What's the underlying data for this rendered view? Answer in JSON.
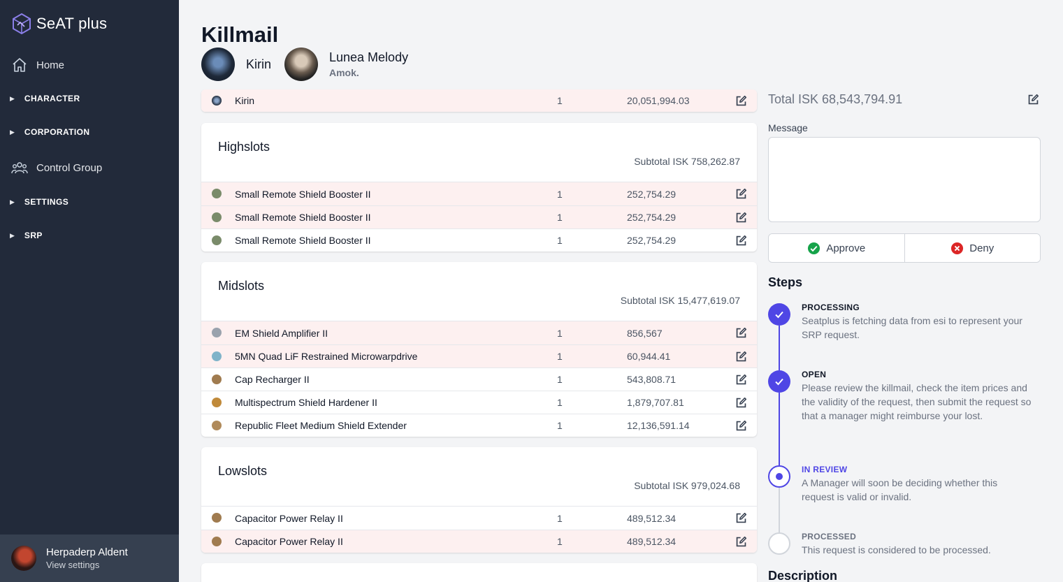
{
  "app": {
    "name": "SeAT plus"
  },
  "sidebar": {
    "home": "Home",
    "character": "CHARACTER",
    "corporation": "CORPORATION",
    "control_group": "Control Group",
    "settings": "SETTINGS",
    "srp": "SRP"
  },
  "user": {
    "name": "Herpaderp Aldent",
    "sub": "View settings"
  },
  "page": {
    "title": "Killmail"
  },
  "victim": {
    "ship": "Kirin",
    "pilot": "Lunea Melody",
    "corporation": "Amok."
  },
  "ship_row": {
    "name": "Kirin",
    "qty": "1",
    "value": "20,051,994.03"
  },
  "highslots": {
    "title": "Highslots",
    "subtotal": "Subtotal ISK 758,262.87",
    "items": [
      {
        "name": "Small Remote Shield Booster II",
        "qty": "1",
        "value": "252,754.29"
      },
      {
        "name": "Small Remote Shield Booster II",
        "qty": "1",
        "value": "252,754.29"
      },
      {
        "name": "Small Remote Shield Booster II",
        "qty": "1",
        "value": "252,754.29"
      }
    ]
  },
  "midslots": {
    "title": "Midslots",
    "subtotal": "Subtotal ISK 15,477,619.07",
    "items": [
      {
        "name": "EM Shield Amplifier II",
        "qty": "1",
        "value": "856,567"
      },
      {
        "name": "5MN Quad LiF Restrained Microwarpdrive",
        "qty": "1",
        "value": "60,944.41"
      },
      {
        "name": "Cap Recharger II",
        "qty": "1",
        "value": "543,808.71"
      },
      {
        "name": "Multispectrum Shield Hardener II",
        "qty": "1",
        "value": "1,879,707.81"
      },
      {
        "name": "Republic Fleet Medium Shield Extender",
        "qty": "1",
        "value": "12,136,591.14"
      }
    ]
  },
  "lowslots": {
    "title": "Lowslots",
    "subtotal": "Subtotal ISK 979,024.68",
    "items": [
      {
        "name": "Capacitor Power Relay II",
        "qty": "1",
        "value": "489,512.34"
      },
      {
        "name": "Capacitor Power Relay II",
        "qty": "1",
        "value": "489,512.34"
      }
    ]
  },
  "summary": {
    "total": "Total ISK 68,543,794.91",
    "message_label": "Message",
    "message_value": "",
    "approve": "Approve",
    "deny": "Deny"
  },
  "steps": {
    "title": "Steps",
    "items": [
      {
        "name": "PROCESSING",
        "desc": "Seatplus is fetching data from esi to represent your SRP request."
      },
      {
        "name": "OPEN",
        "desc": "Please review the killmail, check the item prices and the validity of the request, then submit the request so that a manager might reimburse your lost."
      },
      {
        "name": "IN REVIEW",
        "desc": "A Manager will soon be deciding whether this request is valid or invalid."
      },
      {
        "name": "PROCESSED",
        "desc": "This request is considered to be processed."
      }
    ]
  },
  "description": {
    "title": "Description"
  },
  "colors": {
    "accent": "#4f46e5",
    "sidebar": "#222a3a",
    "highlight": "#fdf0f0",
    "approve": "#16a34a",
    "deny": "#dc2626"
  }
}
